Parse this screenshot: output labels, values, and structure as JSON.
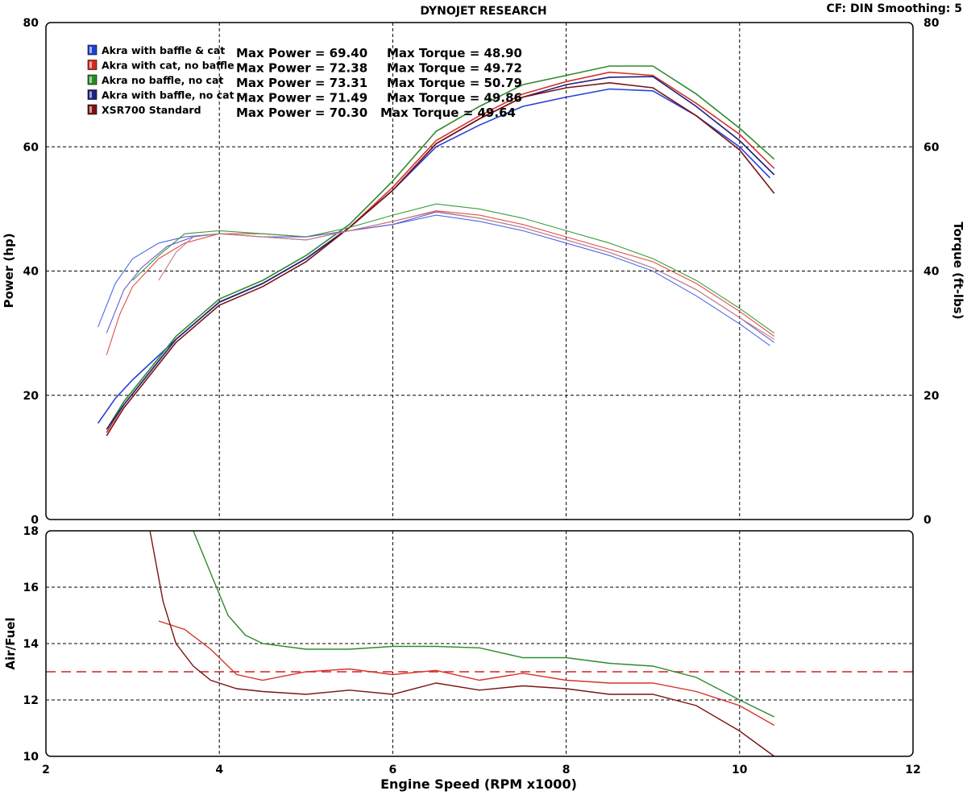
{
  "header": {
    "title": "DYNOJET RESEARCH",
    "settings": "CF: DIN  Smoothing: 5"
  },
  "chart_data": [
    {
      "type": "line",
      "xlabel": "",
      "ylabel": "Power (hp)",
      "y2label": "Torque (ft-lbs)",
      "xlim": [
        2,
        12
      ],
      "ylim": [
        0,
        80
      ],
      "y2lim": [
        0,
        80
      ],
      "x_ticks": [
        2,
        4,
        6,
        8,
        10,
        12
      ],
      "y_ticks": [
        0,
        20,
        40,
        60,
        80
      ],
      "grid": true,
      "legend_position": "top-left",
      "legend": [
        {
          "name": "Akra with baffle & cat",
          "color": "#1f3fd0",
          "max_power": "Max Power = 69.40",
          "max_torque": "Max Torque = 48.90"
        },
        {
          "name": "Akra with cat, no baffle",
          "color": "#d22a22",
          "max_power": "Max Power = 72.38",
          "max_torque": "Max Torque = 49.72"
        },
        {
          "name": "Akra no baffle, no cat",
          "color": "#2a8a2a",
          "max_power": "Max Power = 73.31",
          "max_torque": "Max Torque = 50.79"
        },
        {
          "name": "Akra with baffle, no cat",
          "color": "#1a237e",
          "max_power": "Max Power = 71.49",
          "max_torque": "Max Torque = 49.86"
        },
        {
          "name": "XSR700 Standard",
          "color": "#7a1414",
          "max_power": "Max Power = 70.30",
          "max_torque": "Max Torque = 49.64"
        }
      ],
      "series": [
        {
          "name": "Akra with baffle & cat",
          "kind": "power",
          "color": "#2840d8",
          "x": [
            2.6,
            2.8,
            3.0,
            3.5,
            4.0,
            4.5,
            5.0,
            5.5,
            6.0,
            6.5,
            7.0,
            7.5,
            8.0,
            8.5,
            9.0,
            9.5,
            10.0,
            10.35
          ],
          "y": [
            15.5,
            19.5,
            22.5,
            29,
            35,
            38,
            42,
            47,
            53,
            60,
            63.5,
            66.5,
            68,
            69.3,
            69,
            65,
            60,
            55
          ]
        },
        {
          "name": "Akra with cat, no baffle",
          "kind": "power",
          "color": "#d6332b",
          "x": [
            2.7,
            2.9,
            3.1,
            3.5,
            4.0,
            4.5,
            5.0,
            5.5,
            6.0,
            6.5,
            7.0,
            7.5,
            8.0,
            8.5,
            9.0,
            9.5,
            10.0,
            10.4
          ],
          "y": [
            14,
            18.5,
            22,
            29,
            35,
            38,
            42,
            47,
            53.5,
            61,
            65,
            68.5,
            70.5,
            72,
            71.5,
            67,
            62,
            56.5
          ]
        },
        {
          "name": "Akra no baffle, no cat",
          "kind": "power",
          "color": "#2e8b2e",
          "x": [
            2.7,
            2.9,
            3.1,
            3.5,
            4.0,
            4.5,
            5.0,
            5.5,
            6.0,
            6.5,
            7.0,
            7.5,
            8.0,
            8.5,
            9.0,
            9.5,
            10.0,
            10.4
          ],
          "y": [
            14.5,
            19,
            22.5,
            29.5,
            35.5,
            38.5,
            42.5,
            47.5,
            54.5,
            62.5,
            66.5,
            70,
            71.5,
            73,
            73,
            68.5,
            63,
            58
          ]
        },
        {
          "name": "Akra with baffle, no cat",
          "kind": "power",
          "color": "#1a237e",
          "x": [
            2.7,
            2.9,
            3.1,
            3.5,
            4.0,
            4.5,
            5.0,
            5.5,
            6.0,
            6.5,
            7.0,
            7.5,
            8.0,
            8.5,
            9.0,
            9.5,
            10.0,
            10.4
          ],
          "y": [
            14.5,
            18.5,
            22,
            29,
            35,
            38,
            42,
            47,
            53,
            60.5,
            64.5,
            68,
            70,
            71.2,
            71.3,
            66.5,
            61,
            55.5
          ]
        },
        {
          "name": "XSR700 Standard",
          "kind": "power",
          "color": "#7a1414",
          "x": [
            2.7,
            2.9,
            3.1,
            3.5,
            4.0,
            4.5,
            5.0,
            5.5,
            6.0,
            6.5,
            7.0,
            7.5,
            8.0,
            8.5,
            9.0,
            9.5,
            10.0,
            10.4
          ],
          "y": [
            13.5,
            18,
            21.5,
            28.5,
            34.5,
            37.5,
            41.5,
            47,
            53,
            60.5,
            64.5,
            68,
            69.5,
            70.3,
            69.5,
            65,
            59.5,
            52.5
          ]
        },
        {
          "name": "Akra with baffle & cat",
          "kind": "torque",
          "color": "#4a6ae8",
          "x": [
            2.6,
            2.8,
            3.0,
            3.3,
            3.6,
            4.0,
            4.5,
            5.0,
            5.5,
            6.0,
            6.5,
            7.0,
            7.5,
            8.0,
            8.5,
            9.0,
            9.5,
            10.0,
            10.35
          ],
          "y": [
            31,
            38,
            42,
            44.5,
            45.5,
            46,
            45.5,
            45,
            46.5,
            47.5,
            49,
            48,
            46.5,
            44.5,
            42.5,
            40,
            36,
            31.5,
            28
          ]
        },
        {
          "name": "Akra with cat, no baffle",
          "kind": "torque",
          "color": "#e0504a",
          "x": [
            2.7,
            2.85,
            3.0,
            3.3,
            3.6,
            4.0,
            4.5,
            5.0,
            5.5,
            6.0,
            6.5,
            7.0,
            7.5,
            8.0,
            8.5,
            9.0,
            9.5,
            10.0,
            10.4
          ],
          "y": [
            26.5,
            33,
            37.5,
            42,
            44.5,
            46,
            46,
            45.5,
            46.5,
            48,
            49.7,
            49,
            47.5,
            45.5,
            43.5,
            41.5,
            38,
            33.5,
            29.5
          ]
        },
        {
          "name": "Akra no baffle, no cat",
          "kind": "torque",
          "color": "#3a9a3a",
          "x": [
            3.0,
            3.3,
            3.6,
            4.0,
            4.5,
            5.0,
            5.5,
            6.0,
            6.5,
            7.0,
            7.5,
            8.0,
            8.5,
            9.0,
            9.5,
            10.0,
            10.4
          ],
          "y": [
            38.5,
            42.5,
            46,
            46.5,
            46,
            45.5,
            47,
            49,
            50.8,
            50,
            48.5,
            46.5,
            44.5,
            42,
            38.5,
            34,
            30
          ]
        },
        {
          "name": "Akra with baffle, no cat",
          "kind": "torque",
          "color": "#6a5acd",
          "x": [
            2.7,
            2.9,
            3.1,
            3.4,
            3.7,
            4.0,
            4.5,
            5.0,
            5.5,
            6.0,
            6.5,
            7.0,
            7.5,
            8.0,
            8.5,
            9.0,
            9.5,
            10.0,
            10.4
          ],
          "y": [
            30,
            37,
            40.5,
            44,
            45.5,
            46,
            45.5,
            45.5,
            46.5,
            47.5,
            49.5,
            48.5,
            47,
            45,
            43,
            40.5,
            37,
            32.5,
            28.5
          ]
        },
        {
          "name": "XSR700 Standard",
          "kind": "torque",
          "color": "#c08080",
          "x": [
            3.3,
            3.5,
            3.7,
            4.0,
            4.5,
            5.0,
            5.5,
            6.0,
            6.5,
            7.0,
            7.5,
            8.0,
            8.5,
            9.0,
            9.5,
            10.0,
            10.4
          ],
          "y": [
            38.5,
            43,
            45.5,
            46,
            45.5,
            45,
            46.5,
            48,
            49.6,
            48.5,
            47,
            45,
            43,
            40.5,
            37,
            32.5,
            29
          ]
        }
      ]
    },
    {
      "type": "line",
      "xlabel": "Engine Speed (RPM x1000)",
      "ylabel": "Air/Fuel",
      "xlim": [
        2,
        12
      ],
      "ylim": [
        10,
        18
      ],
      "x_ticks": [
        2,
        4,
        6,
        8,
        10,
        12
      ],
      "y_ticks": [
        10,
        12,
        14,
        16,
        18
      ],
      "grid": true,
      "reference_line": 13,
      "series": [
        {
          "name": "Akra no baffle, no cat",
          "color": "#2e8b2e",
          "x": [
            3.7,
            3.9,
            4.1,
            4.3,
            4.5,
            5.0,
            5.5,
            6.0,
            6.5,
            7.0,
            7.5,
            8.0,
            8.5,
            9.0,
            9.5,
            10.0,
            10.4
          ],
          "y": [
            18,
            16.5,
            15,
            14.3,
            14,
            13.8,
            13.8,
            13.9,
            13.9,
            13.85,
            13.5,
            13.5,
            13.3,
            13.2,
            12.8,
            12,
            11.4
          ]
        },
        {
          "name": "Akra with cat, no baffle",
          "color": "#d6332b",
          "x": [
            3.3,
            3.6,
            3.9,
            4.2,
            4.5,
            5.0,
            5.5,
            6.0,
            6.5,
            7.0,
            7.5,
            8.0,
            8.5,
            9.0,
            9.5,
            10.0,
            10.4
          ],
          "y": [
            14.8,
            14.5,
            13.8,
            12.9,
            12.7,
            13.0,
            13.1,
            12.9,
            13.05,
            12.7,
            12.95,
            12.7,
            12.6,
            12.6,
            12.3,
            11.8,
            11.1
          ]
        },
        {
          "name": "XSR700 Standard",
          "color": "#7a1414",
          "x": [
            3.2,
            3.35,
            3.5,
            3.7,
            3.9,
            4.2,
            4.5,
            5.0,
            5.5,
            6.0,
            6.5,
            7.0,
            7.5,
            8.0,
            8.5,
            9.0,
            9.5,
            10.0,
            10.4
          ],
          "y": [
            18,
            15.5,
            14,
            13.2,
            12.7,
            12.4,
            12.3,
            12.2,
            12.35,
            12.2,
            12.6,
            12.35,
            12.5,
            12.4,
            12.2,
            12.2,
            11.8,
            10.9,
            10.0
          ]
        }
      ]
    }
  ]
}
